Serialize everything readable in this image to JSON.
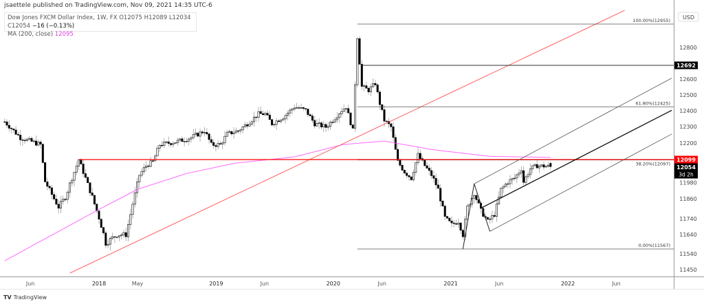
{
  "header": {
    "published": "jsaettele published on TradingView.com, Nov 09, 2021 14:35 UTC-6",
    "symbol": "Dow Jones FXCM Dollar Index, 1W, FX",
    "open": "O12075",
    "high": "H12089",
    "low": "L12034",
    "close": "C12054",
    "change": "−16 (−0.13%)",
    "ma_label": "MA (200, close)",
    "ma_value": "12095"
  },
  "footer": {
    "brand": "TradingView",
    "logo": "17"
  },
  "colors": {
    "bull_body": "#ffffff",
    "bear_body": "#000000",
    "wick": "#9e9e9e",
    "ma": "#ff66ff",
    "red_line": "#ff0000",
    "trend_line": "#ff5a5a",
    "fib": "#555555",
    "badge_dark": "#000000",
    "badge_red": "#ff0000"
  },
  "chart_data": {
    "type": "candlestick",
    "timeframe": "1W",
    "y_scale": "price",
    "currency": "USD",
    "ylim": [
      11420,
      13050
    ],
    "y_ticks": [
      12800,
      12600,
      12500,
      12400,
      12300,
      12200,
      11980,
      11860,
      11740,
      11640,
      11540,
      11450
    ],
    "x_ticks": [
      {
        "date": "2017-06-01",
        "label": "Jun"
      },
      {
        "date": "2018-01-01",
        "label": "2018"
      },
      {
        "date": "2018-05-01",
        "label": "May"
      },
      {
        "date": "2019-01-01",
        "label": "2019"
      },
      {
        "date": "2019-06-01",
        "label": "Jun"
      },
      {
        "date": "2020-01-01",
        "label": "2020"
      },
      {
        "date": "2020-06-01",
        "label": "Jun"
      },
      {
        "date": "2021-01-01",
        "label": "2021"
      },
      {
        "date": "2021-06-01",
        "label": "Jun"
      },
      {
        "date": "2022-01-01",
        "label": "2022"
      },
      {
        "date": "2022-06-01",
        "label": "Jun"
      }
    ],
    "close_path": [
      [
        "2017-03-13",
        12330
      ],
      [
        "2017-05-01",
        12233
      ],
      [
        "2017-07-03",
        12190
      ],
      [
        "2017-07-17",
        11960
      ],
      [
        "2017-08-28",
        11810
      ],
      [
        "2017-09-18",
        11870
      ],
      [
        "2017-10-16",
        12020
      ],
      [
        "2017-10-30",
        12098
      ],
      [
        "2017-11-20",
        11980
      ],
      [
        "2017-12-11",
        11870
      ],
      [
        "2018-01-01",
        11745
      ],
      [
        "2018-01-22",
        11597
      ],
      [
        "2018-02-26",
        11640
      ],
      [
        "2018-03-26",
        11640
      ],
      [
        "2018-04-16",
        11830
      ],
      [
        "2018-05-07",
        12000
      ],
      [
        "2018-05-28",
        12060
      ],
      [
        "2018-06-18",
        12085
      ],
      [
        "2018-07-09",
        12190
      ],
      [
        "2018-09-03",
        12210
      ],
      [
        "2018-10-15",
        12233
      ],
      [
        "2018-11-26",
        12275
      ],
      [
        "2018-12-17",
        12190
      ],
      [
        "2019-01-14",
        12190
      ],
      [
        "2019-02-04",
        12255
      ],
      [
        "2019-03-11",
        12275
      ],
      [
        "2019-04-08",
        12318
      ],
      [
        "2019-05-13",
        12380
      ],
      [
        "2019-06-03",
        12380
      ],
      [
        "2019-06-24",
        12318
      ],
      [
        "2019-07-29",
        12360
      ],
      [
        "2019-09-02",
        12425
      ],
      [
        "2019-10-07",
        12403
      ],
      [
        "2019-11-04",
        12318
      ],
      [
        "2019-12-09",
        12297
      ],
      [
        "2019-12-30",
        12340
      ],
      [
        "2020-01-27",
        12403
      ],
      [
        "2020-02-10",
        12425
      ],
      [
        "2020-03-02",
        12275
      ],
      [
        "2020-03-16",
        12870
      ],
      [
        "2020-03-30",
        12552
      ],
      [
        "2020-04-20",
        12530
      ],
      [
        "2020-05-11",
        12573
      ],
      [
        "2020-05-25",
        12446
      ],
      [
        "2020-06-08",
        12340
      ],
      [
        "2020-06-29",
        12297
      ],
      [
        "2020-07-20",
        12085
      ],
      [
        "2020-08-10",
        12020
      ],
      [
        "2020-08-31",
        11980
      ],
      [
        "2020-09-21",
        12127
      ],
      [
        "2020-10-12",
        12060
      ],
      [
        "2020-11-02",
        12000
      ],
      [
        "2020-11-23",
        11915
      ],
      [
        "2020-12-14",
        11745
      ],
      [
        "2021-01-04",
        11703
      ],
      [
        "2021-01-25",
        11724
      ],
      [
        "2021-02-08",
        11640
      ],
      [
        "2021-02-22",
        11810
      ],
      [
        "2021-03-15",
        11894
      ],
      [
        "2021-04-05",
        11788
      ],
      [
        "2021-04-26",
        11724
      ],
      [
        "2021-05-17",
        11766
      ],
      [
        "2021-06-07",
        11915
      ],
      [
        "2021-06-28",
        11958
      ],
      [
        "2021-07-19",
        11980
      ],
      [
        "2021-08-09",
        12040
      ],
      [
        "2021-08-16",
        11958
      ],
      [
        "2021-09-06",
        12040
      ],
      [
        "2021-09-27",
        12060
      ],
      [
        "2021-11-08",
        12054
      ]
    ],
    "last_candle": {
      "open": 12075,
      "high": 12089,
      "low": 12034,
      "close": 12054
    },
    "ma200": {
      "name": "MA (200, close)",
      "points": [
        [
          "2017-03-13",
          11500
        ],
        [
          "2018-01-01",
          11796
        ],
        [
          "2018-05-01",
          11915
        ],
        [
          "2018-10-01",
          12010
        ],
        [
          "2019-03-01",
          12076
        ],
        [
          "2019-09-01",
          12115
        ],
        [
          "2020-02-01",
          12191
        ],
        [
          "2020-06-08",
          12212
        ],
        [
          "2020-11-01",
          12161
        ],
        [
          "2021-05-01",
          12119
        ],
        [
          "2021-11-08",
          12112
        ]
      ]
    },
    "drawings": {
      "horizontal_resistance": {
        "price": 12099,
        "from": "2017-10-30"
      },
      "trendline": {
        "from": [
          "2017-10-02",
          11430
        ],
        "to": [
          "2022-06-27",
          13040
        ]
      },
      "level_12692": {
        "price": 12692,
        "from": "2020-03-30"
      },
      "fibonacci": {
        "from": "2020-03-16",
        "levels": [
          {
            "price": 12955,
            "label": "100.00%(12955)"
          },
          {
            "price": 12425,
            "label": "61.80%(12425)"
          },
          {
            "price": 12097,
            "label": "38.20%(12097)"
          },
          {
            "price": 11567,
            "label": "0.00%(11567)"
          }
        ]
      },
      "pitchfork": {
        "p1": [
          "2021-02-08",
          11567
        ],
        "p2": [
          "2021-03-15",
          11947
        ],
        "p3": [
          "2021-05-03",
          11660
        ],
        "median_end": [
          "2022-11-21",
          12403
        ],
        "upper_end": [
          "2022-11-21",
          12607
        ],
        "lower_end": [
          "2022-11-21",
          12255
        ]
      }
    },
    "price_badges": [
      {
        "value": "12692",
        "price": 12692,
        "style": "dark"
      },
      {
        "value": "12099",
        "price": 12099,
        "style": "red"
      },
      {
        "value": "12054",
        "price": 12054,
        "style": "dark",
        "sub": "3d 2h"
      }
    ]
  }
}
